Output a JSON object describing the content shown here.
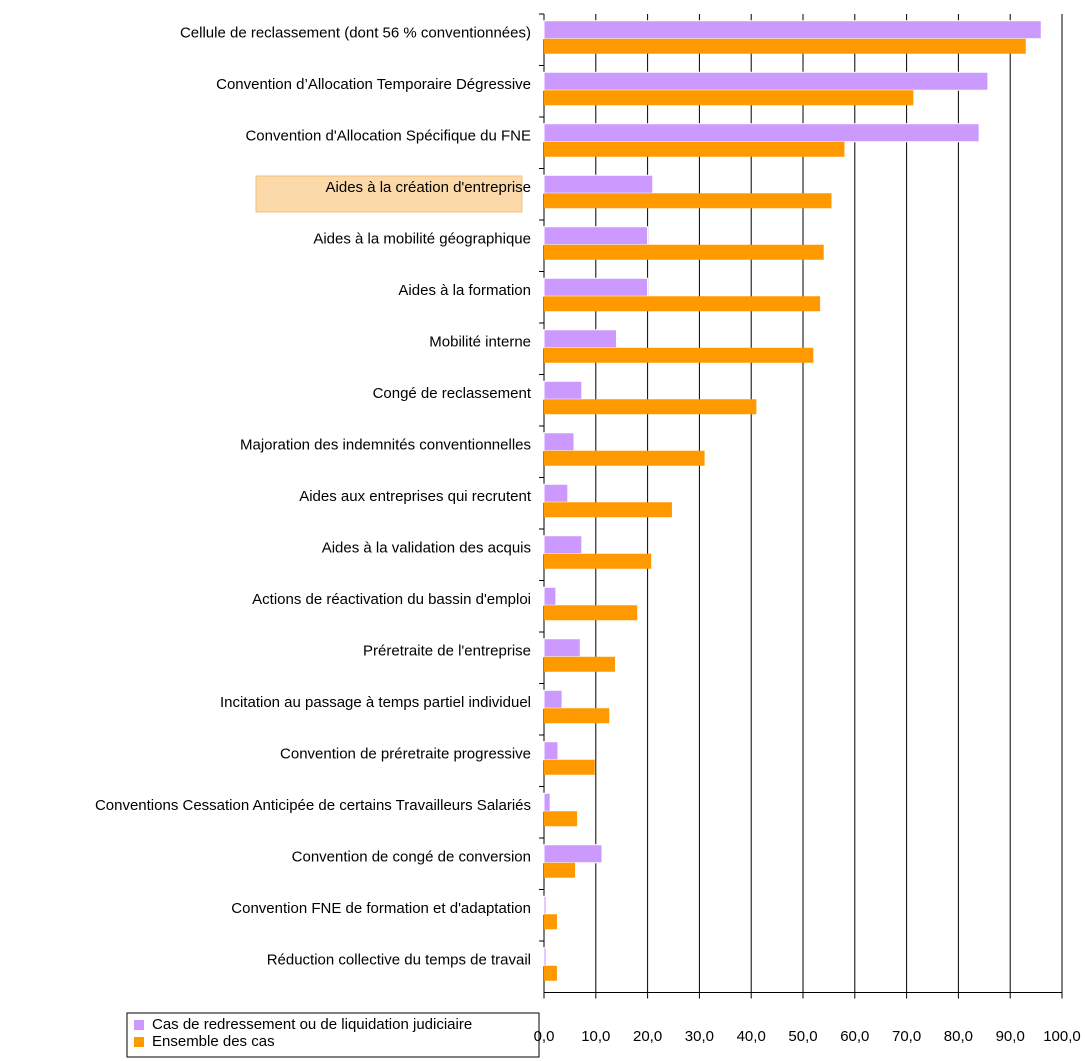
{
  "chart_data": {
    "type": "hbar",
    "categories": [
      "Cellule de reclassement (dont 56 % conventionnées)",
      "Convention d’Allocation Temporaire Dégressive",
      "Convention d'Allocation Spécifique du FNE",
      "Aides à la création d'entreprise",
      "Aides à la mobilité géographique",
      "Aides à la formation",
      "Mobilité interne",
      "Congé de reclassement",
      "Majoration des indemnités conventionnelles",
      "Aides aux entreprises qui recrutent",
      "Aides à la validation des acquis",
      "Actions de réactivation du bassin d'emploi",
      "Préretraite de l'entreprise",
      "Incitation au passage à temps partiel individuel",
      "Convention de préretraite progressive",
      "Conventions Cessation Anticipée de certains Travailleurs Salariés",
      "Convention de congé de conversion",
      "Convention FNE de formation et d'adaptation",
      "Réduction collective du temps de travail"
    ],
    "series": [
      {
        "name": "Cas de redressement ou de liquidation judiciaire",
        "color": "#cc99ff",
        "values": [
          96,
          85.7,
          84,
          21,
          20,
          20,
          14,
          7.3,
          5.8,
          4.6,
          7.3,
          2.3,
          7,
          3.5,
          2.7,
          1.2,
          11.2,
          0.4,
          0.4
        ]
      },
      {
        "name": "Ensemble des cas",
        "color": "#ff9900",
        "values": [
          93,
          71.3,
          58,
          55.5,
          54,
          53.3,
          52,
          41,
          31,
          24.7,
          20.7,
          18,
          13.7,
          12.6,
          9.8,
          6.4,
          6,
          2.5,
          2.5
        ]
      }
    ],
    "xlim": [
      0,
      100
    ],
    "xticks": [
      {
        "value": 0,
        "label": "0,0"
      },
      {
        "value": 10,
        "label": "10,0"
      },
      {
        "value": 20,
        "label": "20,0"
      },
      {
        "value": 30,
        "label": "30,0"
      },
      {
        "value": 40,
        "label": "40,0"
      },
      {
        "value": 50,
        "label": "50,0"
      },
      {
        "value": 60,
        "label": "60,0"
      },
      {
        "value": 70,
        "label": "70,0"
      },
      {
        "value": 80,
        "label": "80,0"
      },
      {
        "value": 90,
        "label": "90,0"
      },
      {
        "value": 100,
        "label": "100,0"
      }
    ],
    "grid": true
  }
}
